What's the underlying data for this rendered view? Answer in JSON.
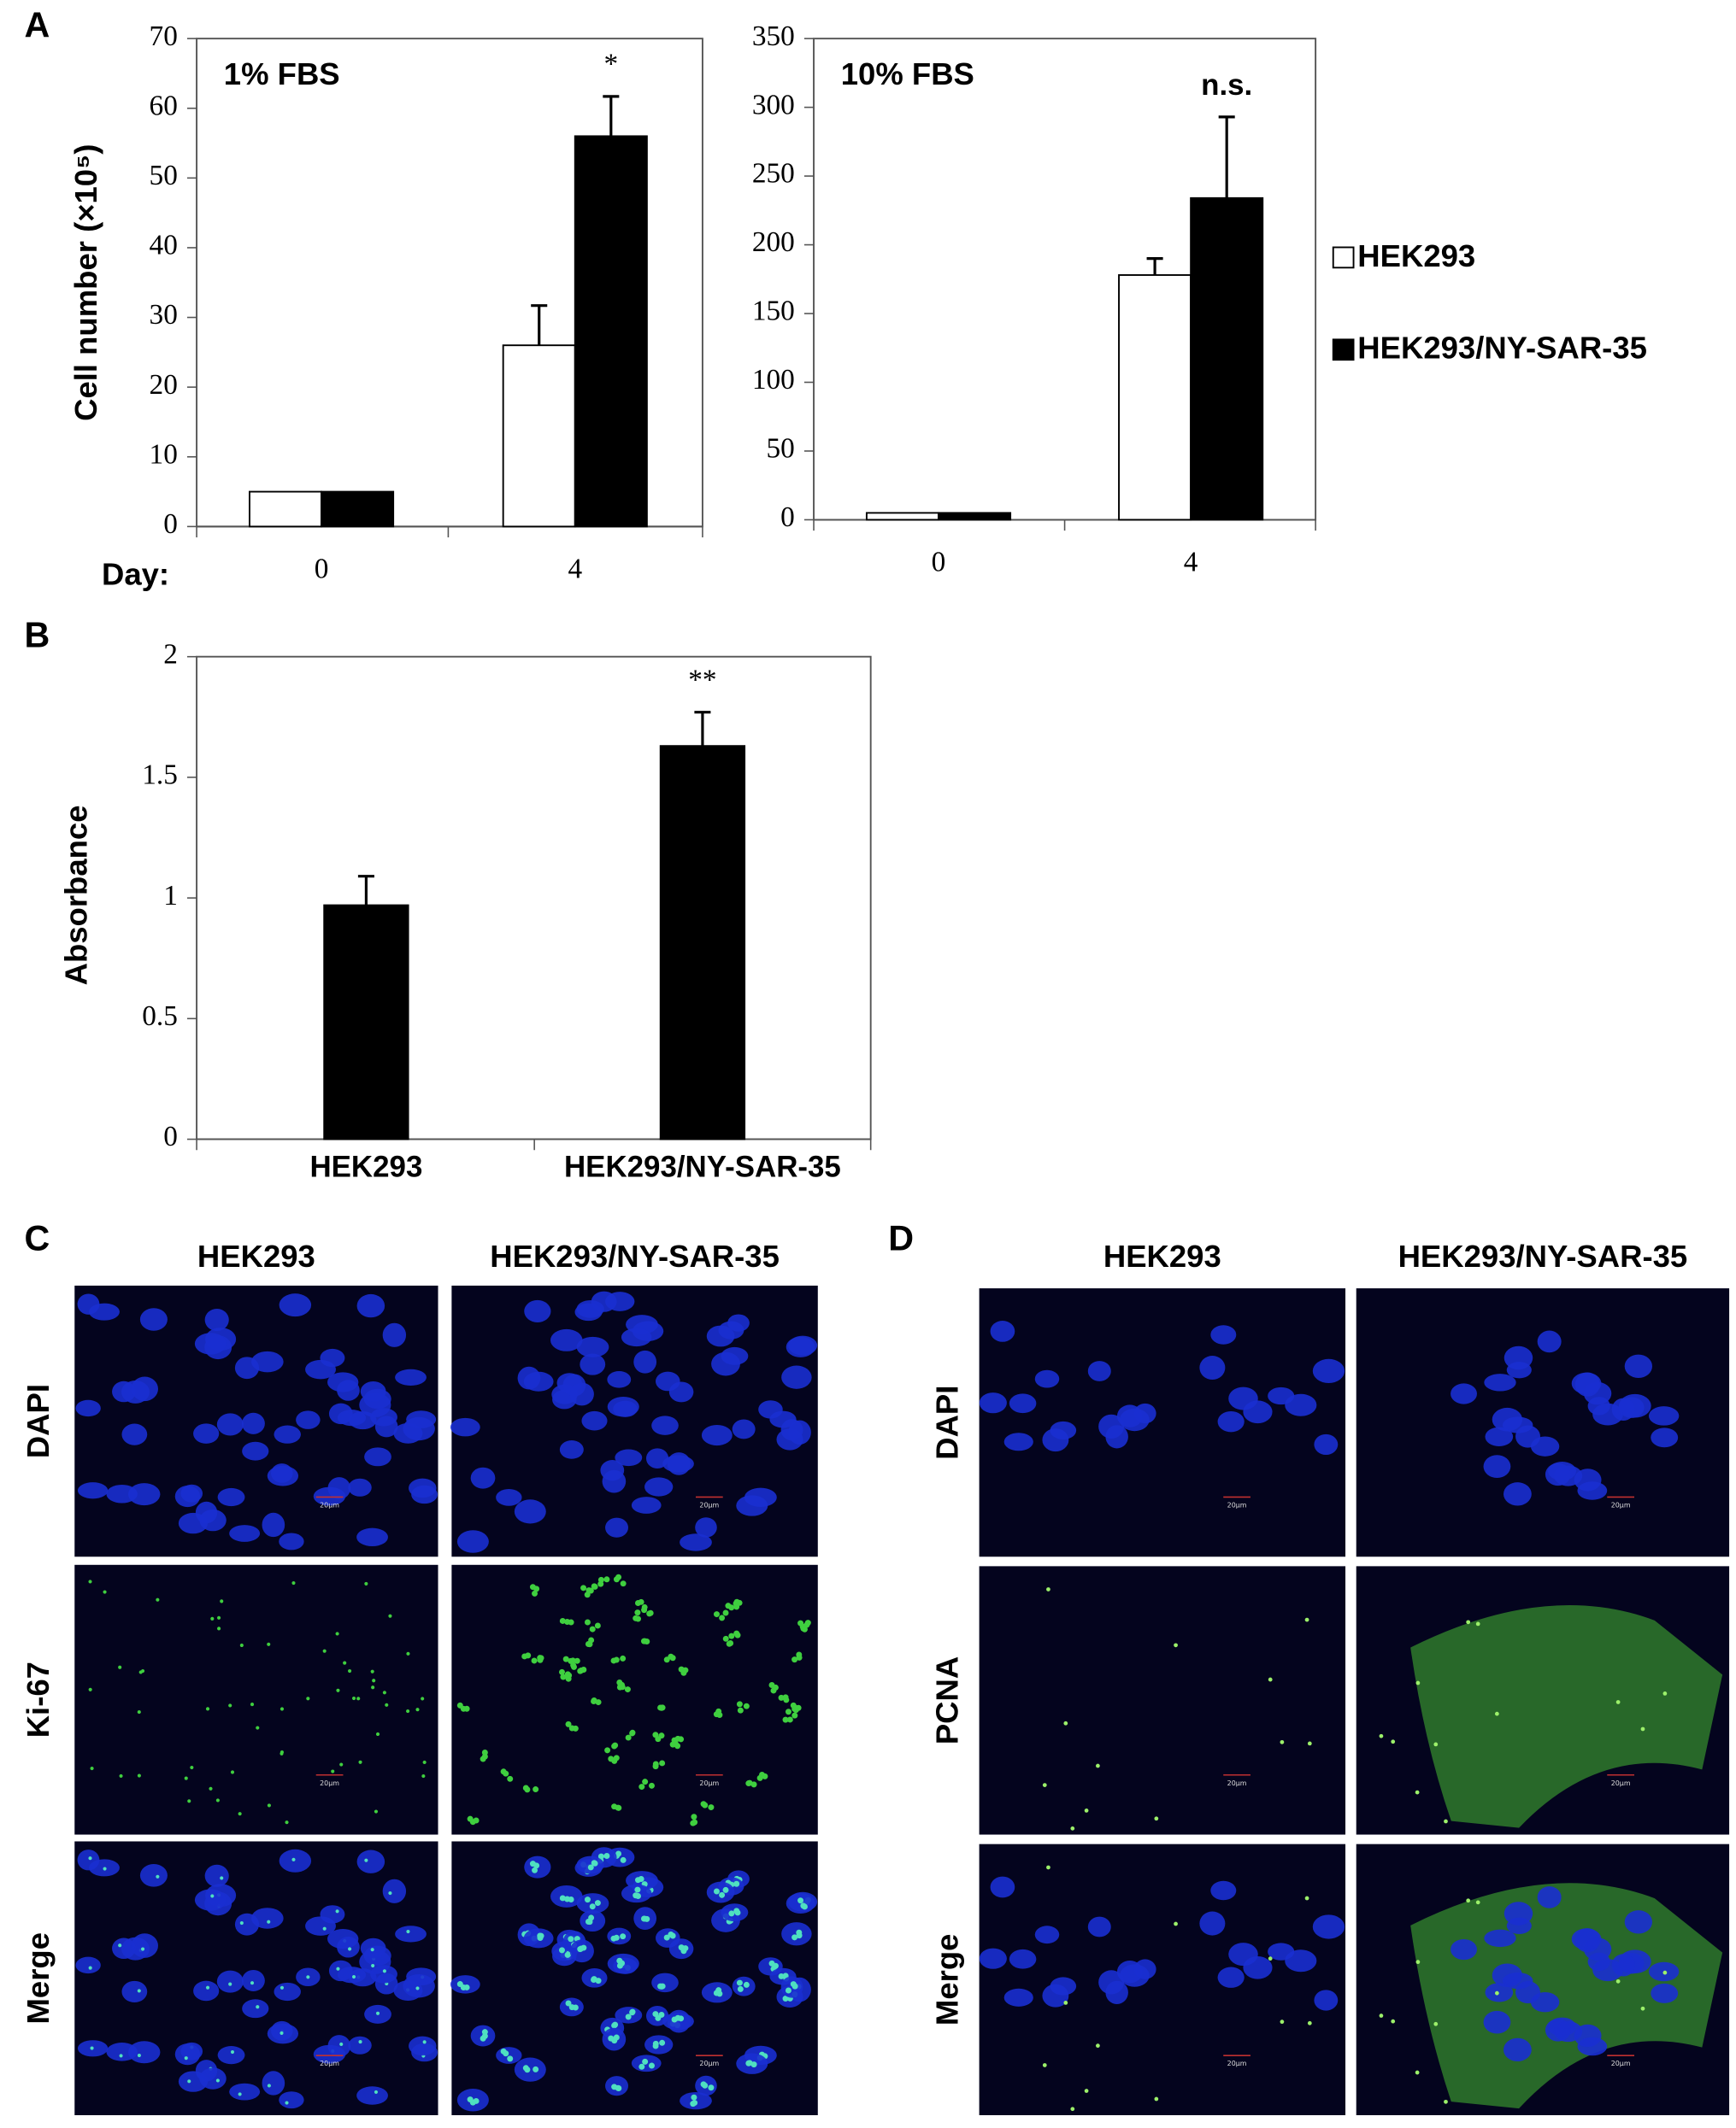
{
  "chart_data": [
    {
      "type": "bar",
      "panel": "A",
      "title": "1% FBS",
      "y_label": "Cell number (×10⁵)",
      "x_label": "Day:",
      "categories": [
        "0",
        "4"
      ],
      "series": [
        {
          "color": "#ffffff",
          "values": [
            5,
            26
          ],
          "errors": [
            null,
            5.7
          ]
        },
        {
          "color": "#000000",
          "values": [
            5,
            56
          ],
          "errors": [
            null,
            5.7
          ]
        }
      ],
      "annotations": [
        "*"
      ],
      "ylim": [
        0,
        70
      ],
      "yticks": [
        0,
        10,
        20,
        30,
        40,
        50,
        60,
        70
      ]
    },
    {
      "type": "bar",
      "title": "10% FBS",
      "categories": [
        "0",
        "4"
      ],
      "series": [
        {
          "name": "HEK293",
          "color": "#ffffff",
          "values": [
            5,
            178
          ],
          "errors": [
            null,
            12
          ]
        },
        {
          "name": "HEK293/NY-SAR-35",
          "color": "#000000",
          "values": [
            5,
            234
          ],
          "errors": [
            null,
            59
          ]
        }
      ],
      "annotations": [
        "n.s."
      ],
      "legend": "right",
      "ylim": [
        0,
        350
      ],
      "yticks": [
        0,
        50,
        100,
        150,
        200,
        250,
        300,
        350
      ]
    },
    {
      "type": "bar",
      "panel": "B",
      "y_label": "Absorbance",
      "categories": [
        "HEK293",
        "HEK293/NY-SAR-35"
      ],
      "values": [
        0.97,
        1.63
      ],
      "errors": [
        0.12,
        0.14
      ],
      "color": "#000000",
      "annotations": [
        "**"
      ],
      "ylim": [
        0,
        2
      ],
      "yticks": [
        0,
        0.5,
        1,
        1.5,
        2
      ]
    }
  ],
  "panels": [
    {
      "label": "C",
      "columns": [
        "HEK293",
        "HEK293/NY-SAR-35"
      ],
      "rows": [
        "DAPI",
        "Ki-67",
        "Merge"
      ]
    },
    {
      "label": "D",
      "columns": [
        "HEK293",
        "HEK293/NY-SAR-35"
      ],
      "rows": [
        "DAPI",
        "PCNA",
        "Merge"
      ]
    }
  ],
  "scale_bar": "20μm"
}
